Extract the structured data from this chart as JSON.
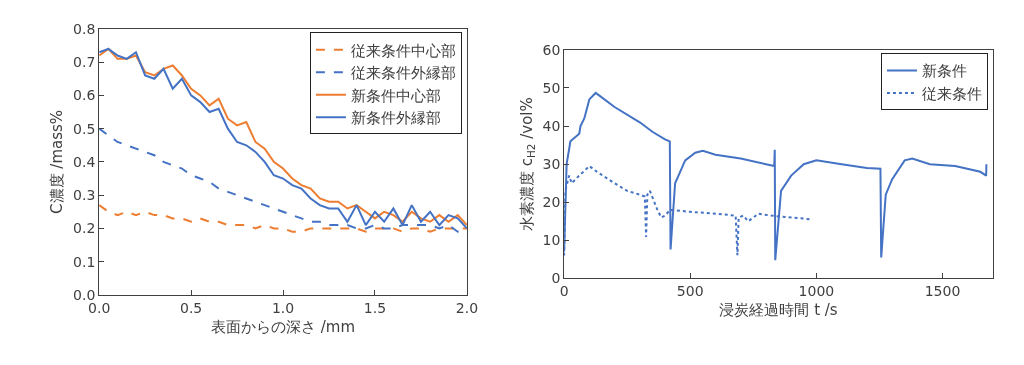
{
  "chart_data": [
    {
      "type": "line",
      "xlabel": "表面からの深さ /mm",
      "ylabel": "C濃度 /mass%",
      "legend": "top right",
      "x": [
        0,
        0.05,
        0.1,
        0.15,
        0.2,
        0.25,
        0.3,
        0.35,
        0.4,
        0.45,
        0.5,
        0.55,
        0.6,
        0.65,
        0.7,
        0.75,
        0.8,
        0.85,
        0.9,
        0.95,
        1.0,
        1.05,
        1.1,
        1.15,
        1.2,
        1.25,
        1.3,
        1.35,
        1.4,
        1.45,
        1.5,
        1.55,
        1.6,
        1.65,
        1.7,
        1.75,
        1.8,
        1.85,
        1.9,
        1.95,
        2.0
      ],
      "xlim": [
        0,
        2
      ],
      "xticks": [
        {
          "value": 0,
          "label": "0.0"
        },
        {
          "value": 0.5,
          "label": "0.5"
        },
        {
          "value": 1,
          "label": "1.0"
        },
        {
          "value": 1.5,
          "label": "1.5"
        },
        {
          "value": 2,
          "label": "2.0"
        }
      ],
      "ylim": [
        0,
        0.8
      ],
      "yticks": [
        {
          "value": 0,
          "label": "0.0"
        },
        {
          "value": 0.1,
          "label": "0.1"
        },
        {
          "value": 0.2,
          "label": "0.2"
        },
        {
          "value": 0.3,
          "label": "0.3"
        },
        {
          "value": 0.4,
          "label": "0.4"
        },
        {
          "value": 0.5,
          "label": "0.5"
        },
        {
          "value": 0.6,
          "label": "0.6"
        },
        {
          "value": 0.7,
          "label": "0.7"
        },
        {
          "value": 0.8,
          "label": "0.8"
        }
      ],
      "series": [
        {
          "name": "従来条件中心部",
          "color": "#ed7d31",
          "line_style": "dashed",
          "values": [
            0.27,
            0.25,
            0.24,
            0.25,
            0.24,
            0.25,
            0.24,
            0.24,
            0.23,
            0.23,
            0.22,
            0.23,
            0.22,
            0.22,
            0.21,
            0.21,
            0.21,
            0.2,
            0.21,
            0.2,
            0.2,
            0.19,
            0.19,
            0.2,
            0.2,
            0.2,
            0.2,
            0.2,
            0.2,
            0.19,
            0.2,
            0.2,
            0.2,
            0.19,
            0.2,
            0.2,
            0.19,
            0.2,
            0.2,
            0.2,
            0.2
          ]
        },
        {
          "name": "従来条件外縁部",
          "color": "#4472c4",
          "line_style": "dashed",
          "values": [
            0.5,
            0.48,
            0.46,
            0.45,
            0.44,
            0.43,
            0.42,
            0.4,
            0.39,
            0.38,
            0.36,
            0.35,
            0.34,
            0.32,
            0.31,
            0.3,
            0.29,
            0.28,
            0.27,
            0.26,
            0.25,
            0.24,
            0.23,
            0.22,
            0.22,
            0.21,
            0.21,
            0.21,
            0.2,
            0.2,
            0.21,
            0.2,
            0.2,
            0.21,
            0.21,
            0.21,
            0.21,
            0.2,
            0.21,
            0.19,
            0.2
          ]
        },
        {
          "name": "新条件中心部",
          "color": "#ed7d31",
          "line_style": "solid",
          "values": [
            0.72,
            0.74,
            0.71,
            0.71,
            0.72,
            0.67,
            0.66,
            0.68,
            0.69,
            0.66,
            0.62,
            0.6,
            0.57,
            0.59,
            0.53,
            0.51,
            0.52,
            0.46,
            0.44,
            0.4,
            0.38,
            0.35,
            0.33,
            0.32,
            0.29,
            0.28,
            0.28,
            0.26,
            0.27,
            0.25,
            0.23,
            0.25,
            0.24,
            0.22,
            0.25,
            0.23,
            0.22,
            0.24,
            0.22,
            0.24,
            0.21
          ]
        },
        {
          "name": "新条件外縁部",
          "color": "#4472c4",
          "line_style": "solid",
          "values": [
            0.73,
            0.74,
            0.72,
            0.71,
            0.73,
            0.66,
            0.65,
            0.68,
            0.62,
            0.65,
            0.6,
            0.58,
            0.55,
            0.56,
            0.5,
            0.46,
            0.45,
            0.43,
            0.4,
            0.36,
            0.35,
            0.33,
            0.32,
            0.29,
            0.27,
            0.26,
            0.26,
            0.22,
            0.27,
            0.21,
            0.25,
            0.22,
            0.26,
            0.21,
            0.27,
            0.22,
            0.25,
            0.21,
            0.24,
            0.23,
            0.2
          ]
        }
      ]
    },
    {
      "type": "line",
      "xlabel": "浸炭経過時間 t /s",
      "ylabel": "水素濃度 c$_{H2}$ /vol%",
      "legend": "top right",
      "xlim": [
        0,
        1700
      ],
      "xticks": [
        0,
        500,
        1000,
        1500
      ],
      "ylim": [
        0,
        60
      ],
      "yticks": [
        0,
        10,
        20,
        30,
        40,
        50,
        60
      ],
      "series": [
        {
          "name": "新条件",
          "color": "#4472c4",
          "line_style": "solid",
          "x": [
            0,
            10,
            25,
            60,
            65,
            80,
            100,
            125,
            140,
            200,
            300,
            350,
            400,
            419,
            422,
            440,
            460,
            480,
            520,
            550,
            600,
            700,
            800,
            833,
            835,
            837,
            860,
            900,
            950,
            1000,
            1100,
            1200,
            1254,
            1257,
            1275,
            1300,
            1350,
            1380,
            1450,
            1550,
            1650,
            1673,
            1674
          ],
          "values": [
            7,
            30,
            36,
            38,
            40,
            42,
            47,
            48.7,
            48,
            45,
            41,
            38.5,
            36.5,
            36,
            7.6,
            25,
            28,
            31,
            33,
            33.5,
            32.5,
            31.5,
            30,
            29.5,
            33.8,
            4.8,
            23,
            27,
            30,
            31,
            30,
            29,
            28.8,
            5.5,
            22,
            26,
            31,
            31.5,
            30,
            29.5,
            28,
            27,
            30
          ]
        },
        {
          "name": "従来条件",
          "color": "#4472c4",
          "line_style": "dotted",
          "x": [
            0,
            5,
            20,
            30,
            60,
            100,
            130,
            200,
            250,
            300,
            320,
            325,
            330,
            340,
            370,
            385,
            400,
            420,
            500,
            600,
            680,
            687,
            692,
            710,
            730,
            770,
            820,
            900,
            985
          ],
          "values": [
            6,
            23,
            27,
            25,
            27,
            29.5,
            28,
            25,
            23,
            22,
            21.5,
            10.9,
            22,
            23,
            18,
            16,
            16.5,
            18,
            17.5,
            17,
            16.5,
            6.1,
            16,
            16.5,
            15,
            17,
            16.5,
            16,
            15.5
          ]
        }
      ]
    }
  ]
}
